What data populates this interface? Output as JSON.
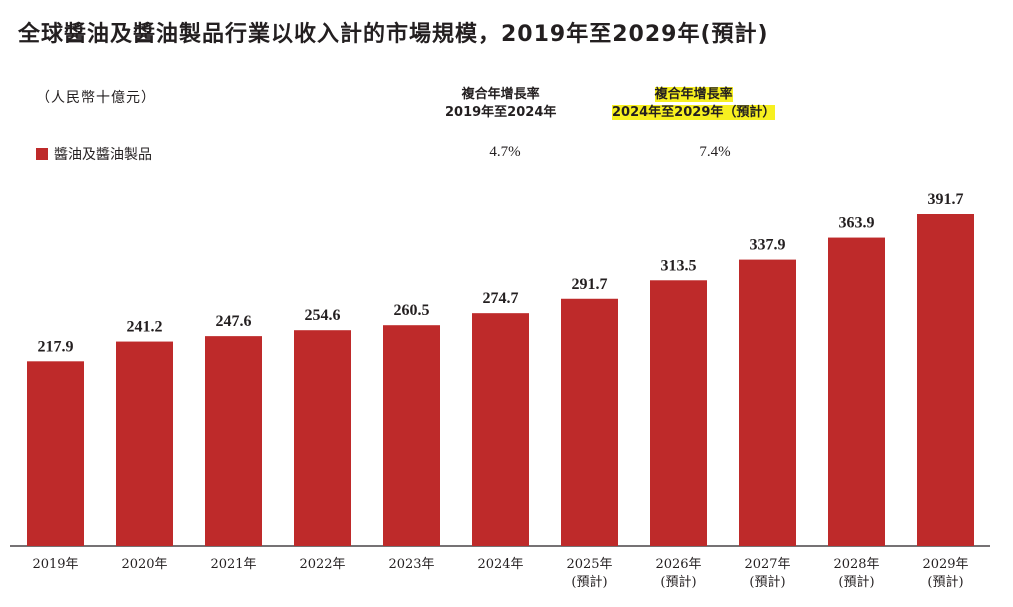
{
  "title": "全球醬油及醬油製品行業以收入計的市場規模，2019年至2029年(預計)",
  "unit_label": "（人民幣十億元）",
  "legend": {
    "label": "醬油及醬油製品",
    "color": "#be2a2a"
  },
  "cagr": [
    {
      "line1": "複合年增長率",
      "line2": "2019年至2024年",
      "value": "4.7%",
      "highlight": false
    },
    {
      "line1": "複合年增長率",
      "line2": "2024年至2029年（預計）",
      "value": "7.4%",
      "highlight": true
    }
  ],
  "colors": {
    "bar": "#be2a2a",
    "highlight": "#f7f020",
    "axis": "#231f20"
  },
  "chart_data": {
    "type": "bar",
    "categories": [
      "2019年",
      "2020年",
      "2021年",
      "2022年",
      "2023年",
      "2024年",
      "2025年\n(預計)",
      "2026年\n(預計)",
      "2027年\n(預計)",
      "2028年\n(預計)",
      "2029年\n(預計)"
    ],
    "series": [
      {
        "name": "醬油及醬油製品",
        "values": [
          217.9,
          241.2,
          247.6,
          254.6,
          260.5,
          274.7,
          291.7,
          313.5,
          337.9,
          363.9,
          391.7
        ]
      }
    ],
    "data_labels": [
      "217.9",
      "241.2",
      "247.6",
      "254.6",
      "260.5",
      "274.7",
      "291.7",
      "313.5",
      "337.9",
      "363.9",
      "391.7"
    ],
    "ylim": [
      0,
      391.7
    ],
    "grid": false,
    "legend_position": "top-left"
  }
}
